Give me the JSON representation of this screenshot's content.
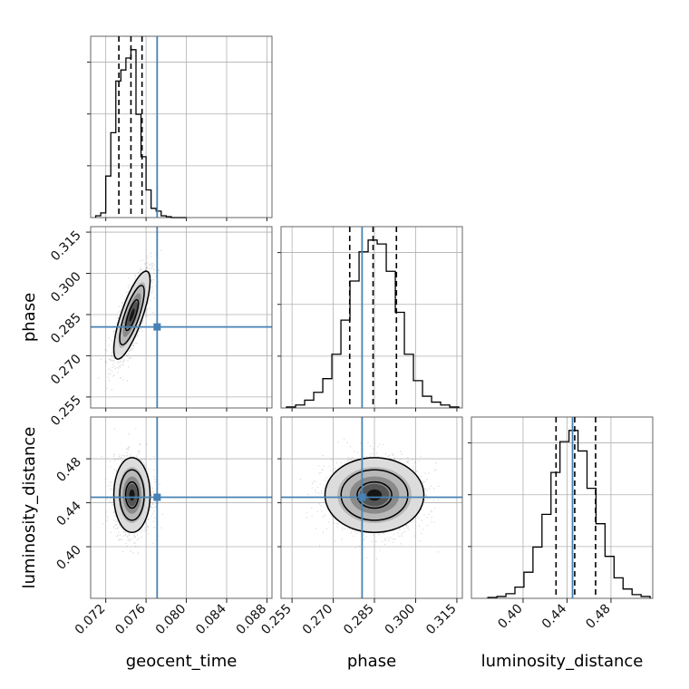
{
  "chart_data": {
    "type": "corner",
    "parameters": [
      "geocent_time",
      "phase",
      "luminosity_distance"
    ],
    "axis_labels": {
      "x": [
        "geocent_time",
        "phase",
        "luminosity_distance"
      ],
      "y": [
        "",
        "phase",
        "luminosity_distance"
      ]
    },
    "ranges": {
      "geocent_time": [
        0.0705,
        0.0885
      ],
      "phase": [
        0.251,
        0.317
      ],
      "luminosity_distance": [
        0.353,
        0.518
      ]
    },
    "ticks": {
      "geocent_time": [
        0.072,
        0.076,
        0.08,
        0.084,
        0.088
      ],
      "phase": [
        0.255,
        0.27,
        0.285,
        0.3,
        0.315
      ],
      "luminosity_distance": [
        0.4,
        0.44,
        0.48
      ]
    },
    "tick_labels": {
      "geocent_time": [
        "0.072",
        "0.076",
        "0.080",
        "0.084",
        "0.088"
      ],
      "phase": [
        "0.255",
        "0.270",
        "0.285",
        "0.300",
        "0.315"
      ],
      "luminosity_distance": [
        "0.40",
        "0.44",
        "0.48"
      ]
    },
    "truths": {
      "geocent_time": 0.0771,
      "phase": 0.2805,
      "luminosity_distance": 0.445
    },
    "quantiles": {
      "geocent_time": [
        0.0733,
        0.0745,
        0.0756
      ],
      "phase": [
        0.276,
        0.2845,
        0.293
      ],
      "luminosity_distance": [
        0.43,
        0.447,
        0.466
      ]
    },
    "marginals": {
      "geocent_time": {
        "edges": [
          0.071,
          0.0715,
          0.072,
          0.0725,
          0.073,
          0.0735,
          0.074,
          0.0745,
          0.075,
          0.0755,
          0.076,
          0.0765,
          0.077,
          0.0775,
          0.078,
          0.0785,
          0.079,
          0.0795,
          0.08
        ],
        "counts": [
          2,
          5,
          45,
          92,
          148,
          160,
          173,
          182,
          112,
          66,
          30,
          10,
          7,
          2,
          1,
          0,
          0,
          0
        ]
      },
      "phase": {
        "edges": [
          0.253,
          0.2563,
          0.2596,
          0.2629,
          0.2662,
          0.2695,
          0.2728,
          0.2761,
          0.2794,
          0.2827,
          0.286,
          0.2893,
          0.2926,
          0.2959,
          0.2992,
          0.3025,
          0.3058,
          0.3091,
          0.3124,
          0.3157
        ],
        "counts": [
          1,
          3,
          8,
          16,
          30,
          55,
          90,
          130,
          160,
          172,
          168,
          140,
          98,
          55,
          28,
          12,
          6,
          3,
          1
        ]
      },
      "luminosity_distance": {
        "edges": [
          0.368,
          0.3762,
          0.3844,
          0.3926,
          0.4008,
          0.409,
          0.4172,
          0.4254,
          0.4336,
          0.4418,
          0.45,
          0.4582,
          0.4664,
          0.4746,
          0.4828,
          0.491,
          0.4992,
          0.5074,
          0.5156
        ],
        "counts": [
          1,
          2,
          5,
          12,
          28,
          55,
          90,
          135,
          168,
          180,
          158,
          118,
          80,
          45,
          22,
          10,
          4,
          2
        ]
      }
    },
    "joint_estimates": {
      "geocent_time|phase": {
        "mean": [
          0.0746,
          0.2848
        ],
        "sd": [
          0.0009,
          0.008
        ],
        "corr": 0.78
      },
      "geocent_time|luminosity_distance": {
        "mean": [
          0.0746,
          0.447
        ],
        "sd": [
          0.0009,
          0.017
        ],
        "corr": 0.0
      },
      "phase|luminosity_distance": {
        "mean": [
          0.285,
          0.447
        ],
        "sd": [
          0.009,
          0.017
        ],
        "corr": 0.0
      }
    },
    "colors": {
      "truth": "#4682b4",
      "quantile": "#000000",
      "hist": "#000000",
      "grid": "#b0b0b0"
    },
    "grid": true
  }
}
